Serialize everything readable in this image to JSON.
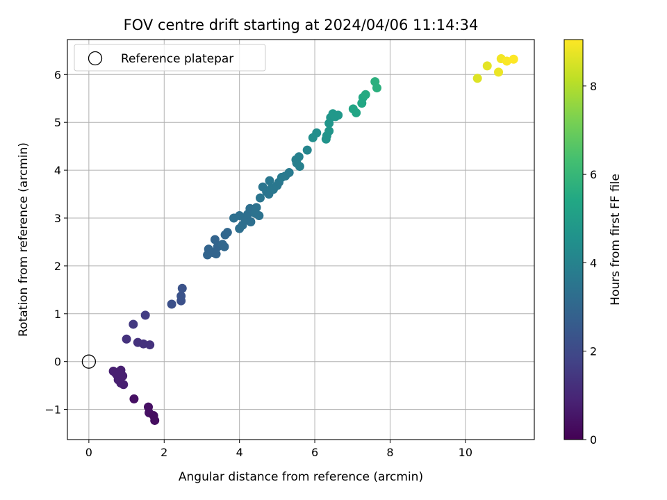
{
  "chart_data": {
    "type": "scatter",
    "title": "FOV centre drift starting at 2024/04/06 11:14:34",
    "xlabel": "Angular distance from reference (arcmin)",
    "ylabel": "Rotation from reference (arcmin)",
    "xlim": [
      -0.57,
      11.83
    ],
    "ylim": [
      -1.63,
      6.73
    ],
    "xticks": [
      0,
      2,
      4,
      6,
      8,
      10
    ],
    "yticks": [
      -1,
      0,
      1,
      2,
      3,
      4,
      5,
      6
    ],
    "grid": true,
    "legend": {
      "placement": "upper-left",
      "entries": [
        "Reference platepar"
      ]
    },
    "reference_point": {
      "x": 0,
      "y": 0
    },
    "colorbar": {
      "label": "Hours from first FF file",
      "colormap": "viridis",
      "range": [
        0,
        9.05
      ],
      "ticks": [
        0,
        2,
        4,
        6,
        8
      ]
    },
    "points": [
      {
        "x": 0.65,
        "y": -0.2,
        "c": 0.8
      },
      {
        "x": 0.75,
        "y": -0.28,
        "c": 0.8
      },
      {
        "x": 0.85,
        "y": -0.18,
        "c": 0.8
      },
      {
        "x": 0.78,
        "y": -0.38,
        "c": 0.8
      },
      {
        "x": 0.9,
        "y": -0.3,
        "c": 0.8
      },
      {
        "x": 0.85,
        "y": -0.45,
        "c": 0.8
      },
      {
        "x": 0.92,
        "y": -0.48,
        "c": 0.8
      },
      {
        "x": 0.72,
        "y": -0.25,
        "c": 0.8
      },
      {
        "x": 1.2,
        "y": -0.78,
        "c": 0.4
      },
      {
        "x": 1.58,
        "y": -0.95,
        "c": 0.4
      },
      {
        "x": 1.6,
        "y": -1.07,
        "c": 0.4
      },
      {
        "x": 1.72,
        "y": -1.13,
        "c": 0.3
      },
      {
        "x": 1.75,
        "y": -1.23,
        "c": 0.3
      },
      {
        "x": 1.0,
        "y": 0.47,
        "c": 1.3
      },
      {
        "x": 1.3,
        "y": 0.4,
        "c": 1.3
      },
      {
        "x": 1.45,
        "y": 0.37,
        "c": 1.3
      },
      {
        "x": 1.62,
        "y": 0.35,
        "c": 1.3
      },
      {
        "x": 1.18,
        "y": 0.78,
        "c": 1.5
      },
      {
        "x": 1.5,
        "y": 0.97,
        "c": 1.6
      },
      {
        "x": 2.2,
        "y": 1.2,
        "c": 2.2
      },
      {
        "x": 2.45,
        "y": 1.27,
        "c": 2.2
      },
      {
        "x": 2.45,
        "y": 1.37,
        "c": 2.3
      },
      {
        "x": 2.48,
        "y": 1.53,
        "c": 2.3
      },
      {
        "x": 3.15,
        "y": 2.23,
        "c": 2.9
      },
      {
        "x": 3.18,
        "y": 2.35,
        "c": 2.9
      },
      {
        "x": 3.3,
        "y": 2.28,
        "c": 2.9
      },
      {
        "x": 3.38,
        "y": 2.25,
        "c": 2.9
      },
      {
        "x": 3.42,
        "y": 2.4,
        "c": 2.9
      },
      {
        "x": 3.35,
        "y": 2.55,
        "c": 2.9
      },
      {
        "x": 3.55,
        "y": 2.45,
        "c": 3.0
      },
      {
        "x": 3.6,
        "y": 2.4,
        "c": 3.0
      },
      {
        "x": 3.62,
        "y": 2.65,
        "c": 3.0
      },
      {
        "x": 3.68,
        "y": 2.7,
        "c": 3.0
      },
      {
        "x": 3.85,
        "y": 3.0,
        "c": 3.3
      },
      {
        "x": 4.0,
        "y": 3.05,
        "c": 3.3
      },
      {
        "x": 4.0,
        "y": 2.78,
        "c": 3.3
      },
      {
        "x": 4.08,
        "y": 2.85,
        "c": 3.3
      },
      {
        "x": 4.15,
        "y": 2.95,
        "c": 3.3
      },
      {
        "x": 4.22,
        "y": 3.08,
        "c": 3.3
      },
      {
        "x": 4.3,
        "y": 2.92,
        "c": 3.3
      },
      {
        "x": 4.28,
        "y": 3.2,
        "c": 3.3
      },
      {
        "x": 4.35,
        "y": 3.15,
        "c": 3.3
      },
      {
        "x": 4.45,
        "y": 3.22,
        "c": 3.4
      },
      {
        "x": 4.52,
        "y": 3.05,
        "c": 3.4
      },
      {
        "x": 4.42,
        "y": 3.1,
        "c": 3.4
      },
      {
        "x": 4.55,
        "y": 3.42,
        "c": 3.5
      },
      {
        "x": 4.62,
        "y": 3.65,
        "c": 3.5
      },
      {
        "x": 4.72,
        "y": 3.55,
        "c": 3.5
      },
      {
        "x": 4.78,
        "y": 3.5,
        "c": 3.5
      },
      {
        "x": 4.8,
        "y": 3.78,
        "c": 3.6
      },
      {
        "x": 4.85,
        "y": 3.62,
        "c": 3.6
      },
      {
        "x": 4.9,
        "y": 3.6,
        "c": 3.6
      },
      {
        "x": 5.0,
        "y": 3.68,
        "c": 3.6
      },
      {
        "x": 5.05,
        "y": 3.75,
        "c": 3.6
      },
      {
        "x": 5.12,
        "y": 3.85,
        "c": 3.7
      },
      {
        "x": 5.22,
        "y": 3.88,
        "c": 3.7
      },
      {
        "x": 5.32,
        "y": 3.95,
        "c": 3.7
      },
      {
        "x": 5.5,
        "y": 4.22,
        "c": 3.9
      },
      {
        "x": 5.52,
        "y": 4.15,
        "c": 3.9
      },
      {
        "x": 5.6,
        "y": 4.08,
        "c": 3.9
      },
      {
        "x": 5.58,
        "y": 4.28,
        "c": 3.9
      },
      {
        "x": 5.8,
        "y": 4.42,
        "c": 4.1
      },
      {
        "x": 5.95,
        "y": 4.68,
        "c": 4.4
      },
      {
        "x": 6.05,
        "y": 4.78,
        "c": 4.4
      },
      {
        "x": 6.3,
        "y": 4.65,
        "c": 4.6
      },
      {
        "x": 6.32,
        "y": 4.72,
        "c": 4.6
      },
      {
        "x": 6.38,
        "y": 4.82,
        "c": 4.7
      },
      {
        "x": 6.38,
        "y": 4.98,
        "c": 4.7
      },
      {
        "x": 6.42,
        "y": 5.1,
        "c": 4.7
      },
      {
        "x": 6.48,
        "y": 5.18,
        "c": 4.8
      },
      {
        "x": 6.55,
        "y": 5.12,
        "c": 4.8
      },
      {
        "x": 6.62,
        "y": 5.15,
        "c": 4.8
      },
      {
        "x": 7.02,
        "y": 5.28,
        "c": 5.3
      },
      {
        "x": 7.1,
        "y": 5.2,
        "c": 5.3
      },
      {
        "x": 7.25,
        "y": 5.4,
        "c": 5.4
      },
      {
        "x": 7.28,
        "y": 5.52,
        "c": 5.4
      },
      {
        "x": 7.35,
        "y": 5.58,
        "c": 5.5
      },
      {
        "x": 7.6,
        "y": 5.85,
        "c": 5.7
      },
      {
        "x": 7.65,
        "y": 5.72,
        "c": 5.7
      },
      {
        "x": 10.32,
        "y": 5.92,
        "c": 8.6
      },
      {
        "x": 10.58,
        "y": 6.18,
        "c": 8.7
      },
      {
        "x": 10.88,
        "y": 6.05,
        "c": 8.8
      },
      {
        "x": 10.95,
        "y": 6.33,
        "c": 8.9
      },
      {
        "x": 11.1,
        "y": 6.28,
        "c": 9.0
      },
      {
        "x": 11.28,
        "y": 6.32,
        "c": 9.05
      }
    ]
  }
}
